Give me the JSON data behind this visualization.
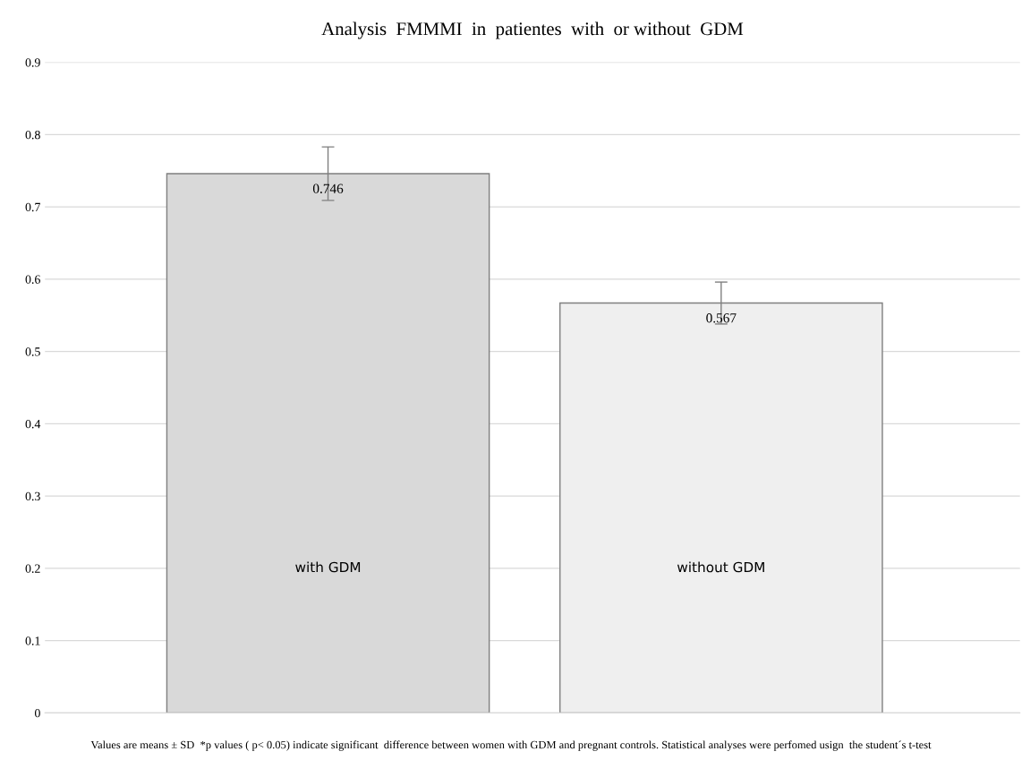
{
  "chart_data": {
    "type": "bar",
    "title": "Analysis  FMMMI  in  patientes  with  or without  GDM",
    "categories": [
      "with GDM",
      "without GDM"
    ],
    "values": [
      0.746,
      0.567
    ],
    "colors": [
      "#d9d9d9",
      "#efefef"
    ],
    "errors": [
      0.037,
      0.029
    ],
    "data_labels": true,
    "ylim": [
      0,
      0.9
    ],
    "yticks": [
      0,
      0.1,
      0.2,
      0.3,
      0.4,
      0.5,
      0.6,
      0.7,
      0.8,
      0.9
    ],
    "grid": "y",
    "tick_labels": "y",
    "annotations": [
      "Values are means ± SD  *p values ( p< 0.05) indicate significant  difference between women with GDM and pregnant controls. Statistical analyses were perfomed usign  the student´s t-test"
    ]
  }
}
